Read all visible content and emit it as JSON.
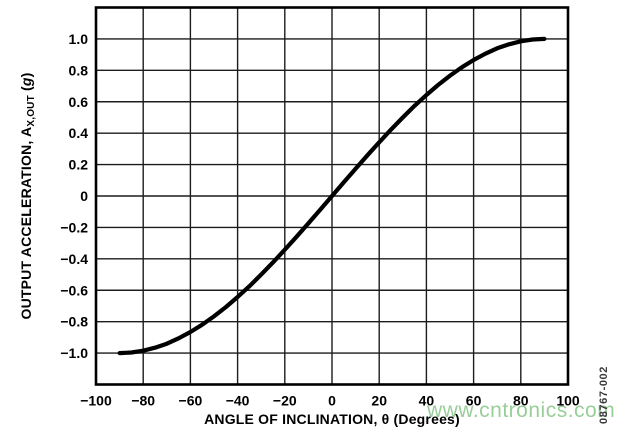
{
  "figure": {
    "watermark": "www.cntronics.com",
    "figure_number": "08767-002"
  },
  "axis_titles": {
    "x": "ANGLE OF INCLINATION, θ (Degrees)",
    "y_pre": "OUTPUT ACCELERATION, A",
    "y_sub": "X,OUT",
    "y_mid": " (",
    "y_g": "g",
    "y_post": ")"
  },
  "style": {
    "background": "#ffffff",
    "curve_color": "#000000",
    "grid_color": "#1c1c1c",
    "frame_color": "#000000",
    "text_color": "#000000",
    "watermark_color": "#76be76",
    "figure_number_color": "#3a3a3a"
  },
  "chart_data": {
    "type": "line",
    "title": "",
    "xlabel": "ANGLE OF INCLINATION, θ (Degrees)",
    "ylabel": "OUTPUT ACCELERATION, AX,OUT (g)",
    "xlim": [
      -100,
      100
    ],
    "ylim": [
      -1.2,
      1.2
    ],
    "grid": true,
    "legend": false,
    "x_gridline_step": 20,
    "y_gridline_step": 0.2,
    "y_gridlines": [
      -1.2,
      -1.0,
      -0.8,
      -0.6,
      -0.4,
      -0.2,
      0,
      0.2,
      0.4,
      0.6,
      0.8,
      1.0,
      1.2
    ],
    "x_ticks": [
      {
        "v": -100,
        "label": "−100"
      },
      {
        "v": -80,
        "label": "−80"
      },
      {
        "v": -60,
        "label": "−60"
      },
      {
        "v": -40,
        "label": "−40"
      },
      {
        "v": -20,
        "label": "−20"
      },
      {
        "v": 0,
        "label": "0"
      },
      {
        "v": 20,
        "label": "20"
      },
      {
        "v": 40,
        "label": "40"
      },
      {
        "v": 60,
        "label": "60"
      },
      {
        "v": 80,
        "label": "80"
      },
      {
        "v": 100,
        "label": "100"
      }
    ],
    "y_ticks": [
      {
        "v": 1.0,
        "label": "1.0"
      },
      {
        "v": 0.8,
        "label": "0.8"
      },
      {
        "v": 0.6,
        "label": "0.6"
      },
      {
        "v": 0.4,
        "label": "0.4"
      },
      {
        "v": 0.2,
        "label": "0.2"
      },
      {
        "v": 0,
        "label": "0"
      },
      {
        "v": -0.2,
        "label": "−0.2"
      },
      {
        "v": -0.4,
        "label": "−0.4"
      },
      {
        "v": -0.6,
        "label": "−0.6"
      },
      {
        "v": -0.8,
        "label": "−0.8"
      },
      {
        "v": -1.0,
        "label": "−1.0"
      }
    ],
    "series": [
      {
        "x": [
          -90,
          -85,
          -80,
          -75,
          -70,
          -65,
          -60,
          -55,
          -50,
          -45,
          -40,
          -35,
          -30,
          -25,
          -20,
          -15,
          -10,
          -5,
          0,
          5,
          10,
          15,
          20,
          25,
          30,
          35,
          40,
          45,
          50,
          55,
          60,
          65,
          70,
          75,
          80,
          85,
          90
        ],
        "y": [
          -1.0,
          -0.996,
          -0.985,
          -0.966,
          -0.94,
          -0.906,
          -0.866,
          -0.819,
          -0.766,
          -0.707,
          -0.643,
          -0.574,
          -0.5,
          -0.423,
          -0.342,
          -0.259,
          -0.174,
          -0.087,
          0.0,
          0.087,
          0.174,
          0.259,
          0.342,
          0.423,
          0.5,
          0.574,
          0.643,
          0.707,
          0.766,
          0.819,
          0.866,
          0.906,
          0.94,
          0.966,
          0.985,
          0.996,
          1.0
        ]
      }
    ]
  }
}
